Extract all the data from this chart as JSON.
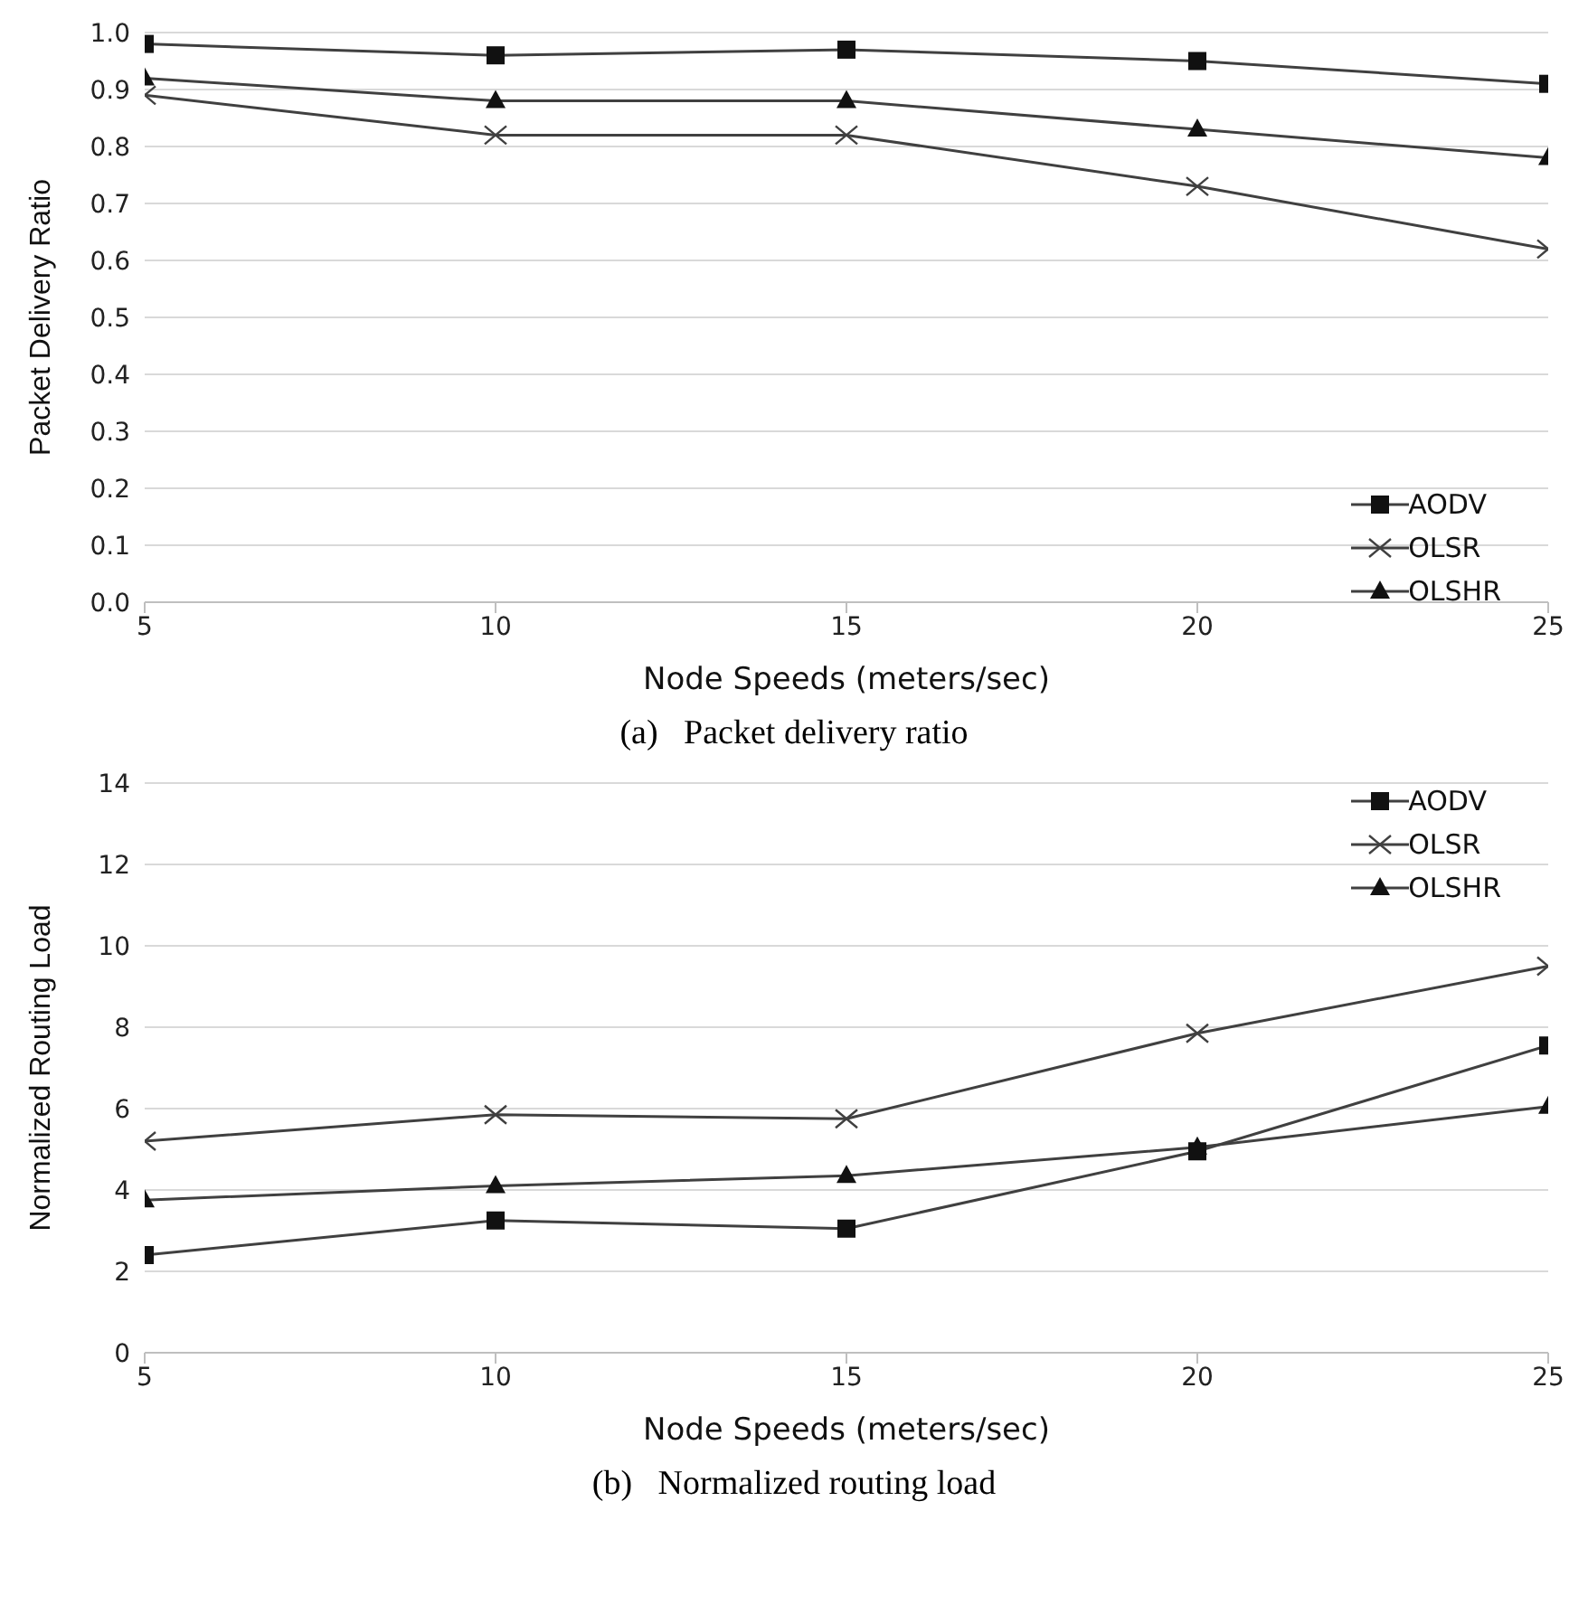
{
  "chart_data": [
    {
      "type": "line",
      "title": "(a)   Packet delivery ratio",
      "xlabel": "Node Speeds (meters/sec)",
      "ylabel": "Packet Delivery Ratio",
      "x": [
        5,
        10,
        15,
        20,
        25
      ],
      "xlim": [
        5,
        25
      ],
      "xticks": [
        5,
        10,
        15,
        20,
        25
      ],
      "ylim": [
        0,
        1
      ],
      "yticks": [
        {
          "value": 0,
          "label": "0.0"
        },
        0.1,
        0.2,
        0.3,
        0.4,
        0.5,
        0.6,
        0.7,
        0.8,
        0.9,
        {
          "value": 1,
          "label": "1.0"
        }
      ],
      "grid": "y",
      "legend": "bottom right",
      "series": [
        {
          "name": "AODV",
          "color": "#404040",
          "marker": "square",
          "values": [
            0.98,
            0.96,
            0.97,
            0.95,
            0.91
          ]
        },
        {
          "name": "OLSR",
          "color": "#404040",
          "marker": "cross",
          "values": [
            0.89,
            0.82,
            0.82,
            0.73,
            0.62
          ]
        },
        {
          "name": "OLSHR",
          "color": "#404040",
          "marker": "triangle",
          "values": [
            0.92,
            0.88,
            0.88,
            0.83,
            0.78
          ]
        }
      ]
    },
    {
      "type": "line",
      "title": "(b)   Normalized routing load",
      "xlabel": "Node Speeds (meters/sec)",
      "ylabel": "Normalized Routing Load",
      "x": [
        5,
        10,
        15,
        20,
        25
      ],
      "xlim": [
        5,
        25
      ],
      "xticks": [
        5,
        10,
        15,
        20,
        25
      ],
      "ylim": [
        0,
        14
      ],
      "yticks": [
        0,
        2,
        4,
        6,
        8,
        10,
        12,
        14
      ],
      "grid": "y",
      "legend": "top right",
      "series": [
        {
          "name": "AODV",
          "color": "#404040",
          "marker": "square",
          "values": [
            2.4,
            3.25,
            3.05,
            4.95,
            7.55
          ]
        },
        {
          "name": "OLSR",
          "color": "#404040",
          "marker": "cross",
          "values": [
            5.2,
            5.85,
            5.75,
            7.85,
            9.5
          ]
        },
        {
          "name": "OLSHR",
          "color": "#404040",
          "marker": "triangle",
          "values": [
            3.75,
            4.1,
            4.35,
            5.05,
            6.05
          ]
        }
      ]
    }
  ]
}
